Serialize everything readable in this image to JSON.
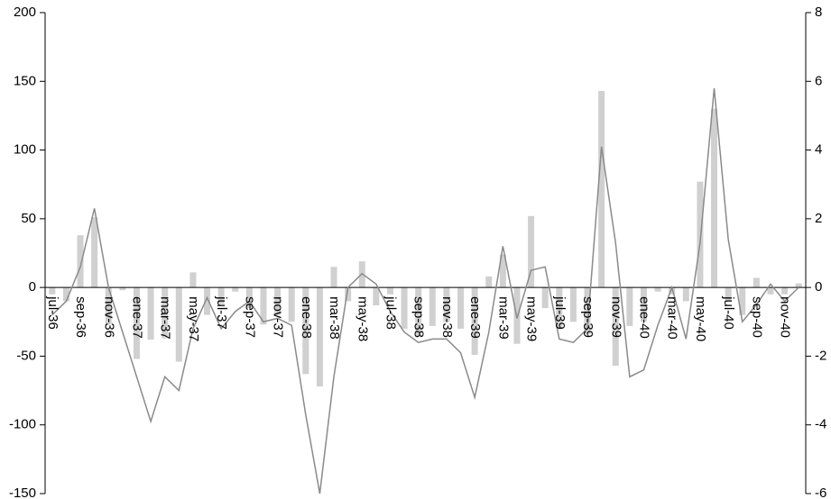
{
  "chart_data": {
    "type": "bar-line",
    "categories": [
      "jul-36",
      null,
      "sep-36",
      null,
      "nov-36",
      null,
      "ene-37",
      null,
      "mar-37",
      null,
      "may-37",
      null,
      "jul-37",
      null,
      "sep-37",
      null,
      "nov-37",
      null,
      "ene-38",
      null,
      "mar-38",
      null,
      "may-38",
      null,
      "jul-38",
      null,
      "sep-38",
      null,
      "nov-38",
      null,
      "ene-39",
      null,
      "mar-39",
      null,
      "may-39",
      null,
      "jul-39",
      null,
      "sep-39",
      null,
      "nov-39",
      null,
      "ene-40",
      null,
      "mar-40",
      null,
      "may-40",
      null,
      "jul-40",
      null,
      "sep-40",
      null,
      "nov-40",
      null
    ],
    "series": [
      {
        "type": "bar",
        "color": "#d0d0d0",
        "values": [
          -5,
          -10,
          38,
          51,
          -27,
          -2,
          -52,
          -38,
          -37,
          -54,
          11,
          -20,
          -12,
          -3,
          -15,
          -27,
          -20,
          -25,
          -63,
          -72,
          15,
          -10,
          19,
          -13,
          -5,
          -30,
          -35,
          -28,
          -25,
          -30,
          -49,
          8,
          24,
          -41,
          52,
          -15,
          -30,
          -25,
          -34,
          143,
          -57,
          -28,
          -25,
          -3,
          -5,
          -10,
          77,
          130,
          -10,
          -20,
          7,
          -5,
          -5,
          3
        ]
      },
      {
        "type": "line",
        "axis": "y2",
        "color": "#8a8a8a",
        "values": [
          -0.8,
          -0.4,
          0.6,
          2.3,
          0,
          -1.3,
          -2.6,
          -3.9,
          -2.6,
          -3.0,
          -1.2,
          -0.3,
          -1.2,
          -0.7,
          -0.4,
          -1.0,
          -0.9,
          -1.1,
          -3.7,
          -6.0,
          -2.6,
          0,
          0.4,
          0.1,
          -0.7,
          -1.3,
          -1.6,
          -1.5,
          -1.5,
          -1.9,
          -3.2,
          -1.3,
          1.2,
          -0.9,
          0.5,
          0.6,
          -1.5,
          -1.6,
          -1.2,
          4.1,
          1.3,
          -2.6,
          -2.4,
          -1.1,
          0,
          -1.5,
          1.3,
          5.8,
          1.4,
          -1.0,
          -0.5,
          0.1,
          -0.4,
          0
        ]
      }
    ],
    "ylim": [
      -150,
      200
    ],
    "yticks": [
      -150,
      -100,
      -50,
      0,
      50,
      100,
      150,
      200
    ],
    "y2lim": [
      -6,
      8
    ],
    "y2ticks": [
      -6,
      -4,
      -2,
      0,
      2,
      4,
      6,
      8
    ]
  }
}
